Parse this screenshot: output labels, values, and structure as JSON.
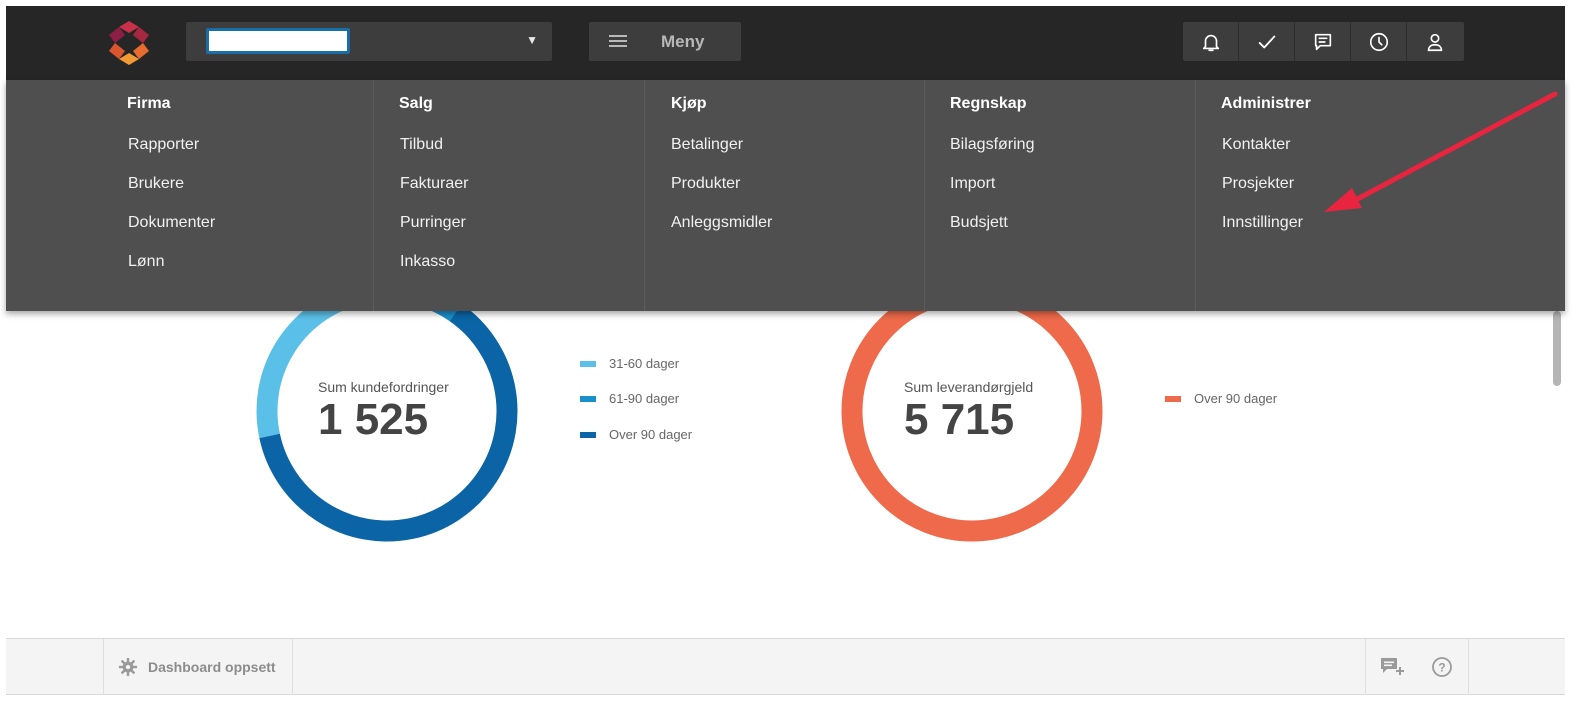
{
  "topbar": {
    "company_selector_value": "",
    "menu_label": "Meny",
    "icons": [
      "bell-icon",
      "checkmark-icon",
      "chat-icon",
      "clock-icon",
      "user-icon"
    ]
  },
  "mega_menu": {
    "columns": [
      {
        "heading": "Firma",
        "items": [
          "Rapporter",
          "Brukere",
          "Dokumenter",
          "Lønn"
        ]
      },
      {
        "heading": "Salg",
        "items": [
          "Tilbud",
          "Fakturaer",
          "Purringer",
          "Inkasso"
        ]
      },
      {
        "heading": "Kjøp",
        "items": [
          "Betalinger",
          "Produkter",
          "Anleggsmidler"
        ]
      },
      {
        "heading": "Regnskap",
        "items": [
          "Bilagsføring",
          "Import",
          "Budsjett"
        ]
      },
      {
        "heading": "Administrer",
        "items": [
          "Kontakter",
          "Prosjekter",
          "Innstillinger"
        ]
      }
    ]
  },
  "receivables": {
    "label": "Sum kundefordringer",
    "value": "1 525",
    "legend": [
      {
        "label": "31-60 dager",
        "color": "#5bc0e8"
      },
      {
        "label": "61-90 dager",
        "color": "#1a8fc9"
      },
      {
        "label": "Over 90 dager",
        "color": "#0a64a5"
      }
    ],
    "segments_fraction": [
      0.32,
      0.06,
      0.62
    ]
  },
  "payables": {
    "label": "Sum leverandørgjeld",
    "value": "5 715",
    "legend": [
      {
        "label": "Over 90 dager",
        "color": "#ee6a4a"
      }
    ],
    "segments_fraction": [
      1.0
    ]
  },
  "footer": {
    "dashboard_setup_label": "Dashboard oppsett",
    "icons": [
      "add-comment-icon",
      "help-icon"
    ]
  },
  "colors": {
    "topbar": "#262626",
    "menu_bg": "#4f4f4f",
    "annotation_arrow": "#e8243f"
  }
}
